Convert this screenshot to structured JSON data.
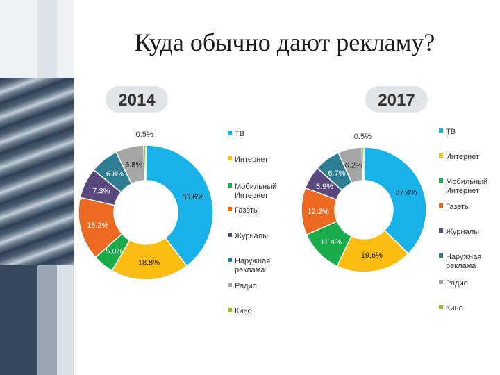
{
  "slide": {
    "title": "Куда обычно дают рекламу?"
  },
  "colors": {
    "ТВ": "#1ab0e8",
    "Интернет": "#fbbc13",
    "Мобильный Интернет": "#1aab4b",
    "Газеты": "#eb6a1f",
    "Журналы": "#594a7e",
    "Наружная реклама": "#2d7e93",
    "Радио": "#a6a6a6",
    "Кино": "#94c13c",
    "year_badge_bg": "#e2e5e8",
    "year_badge_text": "#333333"
  },
  "chart_data": [
    {
      "type": "pie",
      "title": "2014",
      "categories": [
        "ТВ",
        "Интернет",
        "Мобильный Интернет",
        "Газеты",
        "Журналы",
        "Наружная реклама",
        "Радио",
        "Кино"
      ],
      "values": [
        39.6,
        18.8,
        5.0,
        15.2,
        7.3,
        6.8,
        6.8,
        0.5
      ],
      "labels": [
        "39.6%",
        "18.8%",
        "5.0%",
        "15.2%",
        "7.3%",
        "6.8%",
        "6.8%",
        "0.5%"
      ],
      "legend": {
        "position": "right",
        "entries": [
          [
            "ТВ"
          ],
          [
            "Интернет"
          ],
          [
            "Мобильный",
            "Интернет"
          ],
          [
            "Газеты"
          ],
          [
            "Журналы"
          ],
          [
            "Наружная",
            "реклама"
          ],
          [
            "Радио"
          ],
          [
            "Кино"
          ]
        ]
      }
    },
    {
      "type": "pie",
      "title": "2017",
      "categories": [
        "ТВ",
        "Интернет",
        "Мобильный Интернет",
        "Газеты",
        "Журналы",
        "Наружная реклама",
        "Радио",
        "Кино"
      ],
      "values": [
        37.4,
        19.6,
        11.4,
        12.2,
        5.9,
        6.7,
        6.2,
        0.5
      ],
      "labels": [
        "37.4%",
        "19.6%",
        "11.4%",
        "12.2%",
        "5.9%",
        "6.7%",
        "6.2%",
        "0.5%"
      ],
      "legend": {
        "position": "right",
        "entries": [
          [
            "ТВ"
          ],
          [
            "Интернет"
          ],
          [
            "Мобильный",
            "Интернет"
          ],
          [
            "Газеты"
          ],
          [
            "Журналы"
          ],
          [
            "Наружная",
            "реклама"
          ],
          [
            "Радио"
          ],
          [
            "Кино"
          ]
        ]
      }
    }
  ]
}
